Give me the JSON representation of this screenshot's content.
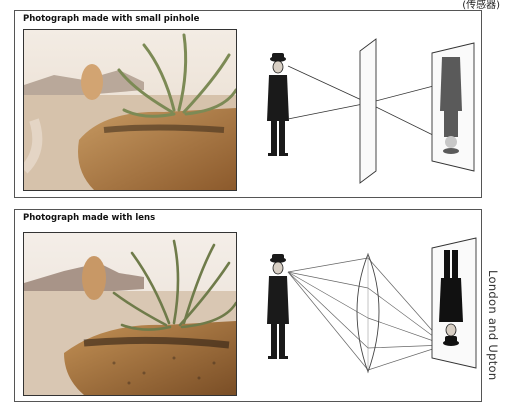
{
  "corner_note": "(传感器)",
  "panels": [
    {
      "title": "Photograph made with small pinhole"
    },
    {
      "title": "Photograph made with lens"
    }
  ],
  "side_credit": "London and Upton",
  "colors": {
    "frame": "#555555",
    "ink": "#222222",
    "sand": "#d8c8b4",
    "ground": "#b8834c",
    "sky": "#efe7de"
  }
}
